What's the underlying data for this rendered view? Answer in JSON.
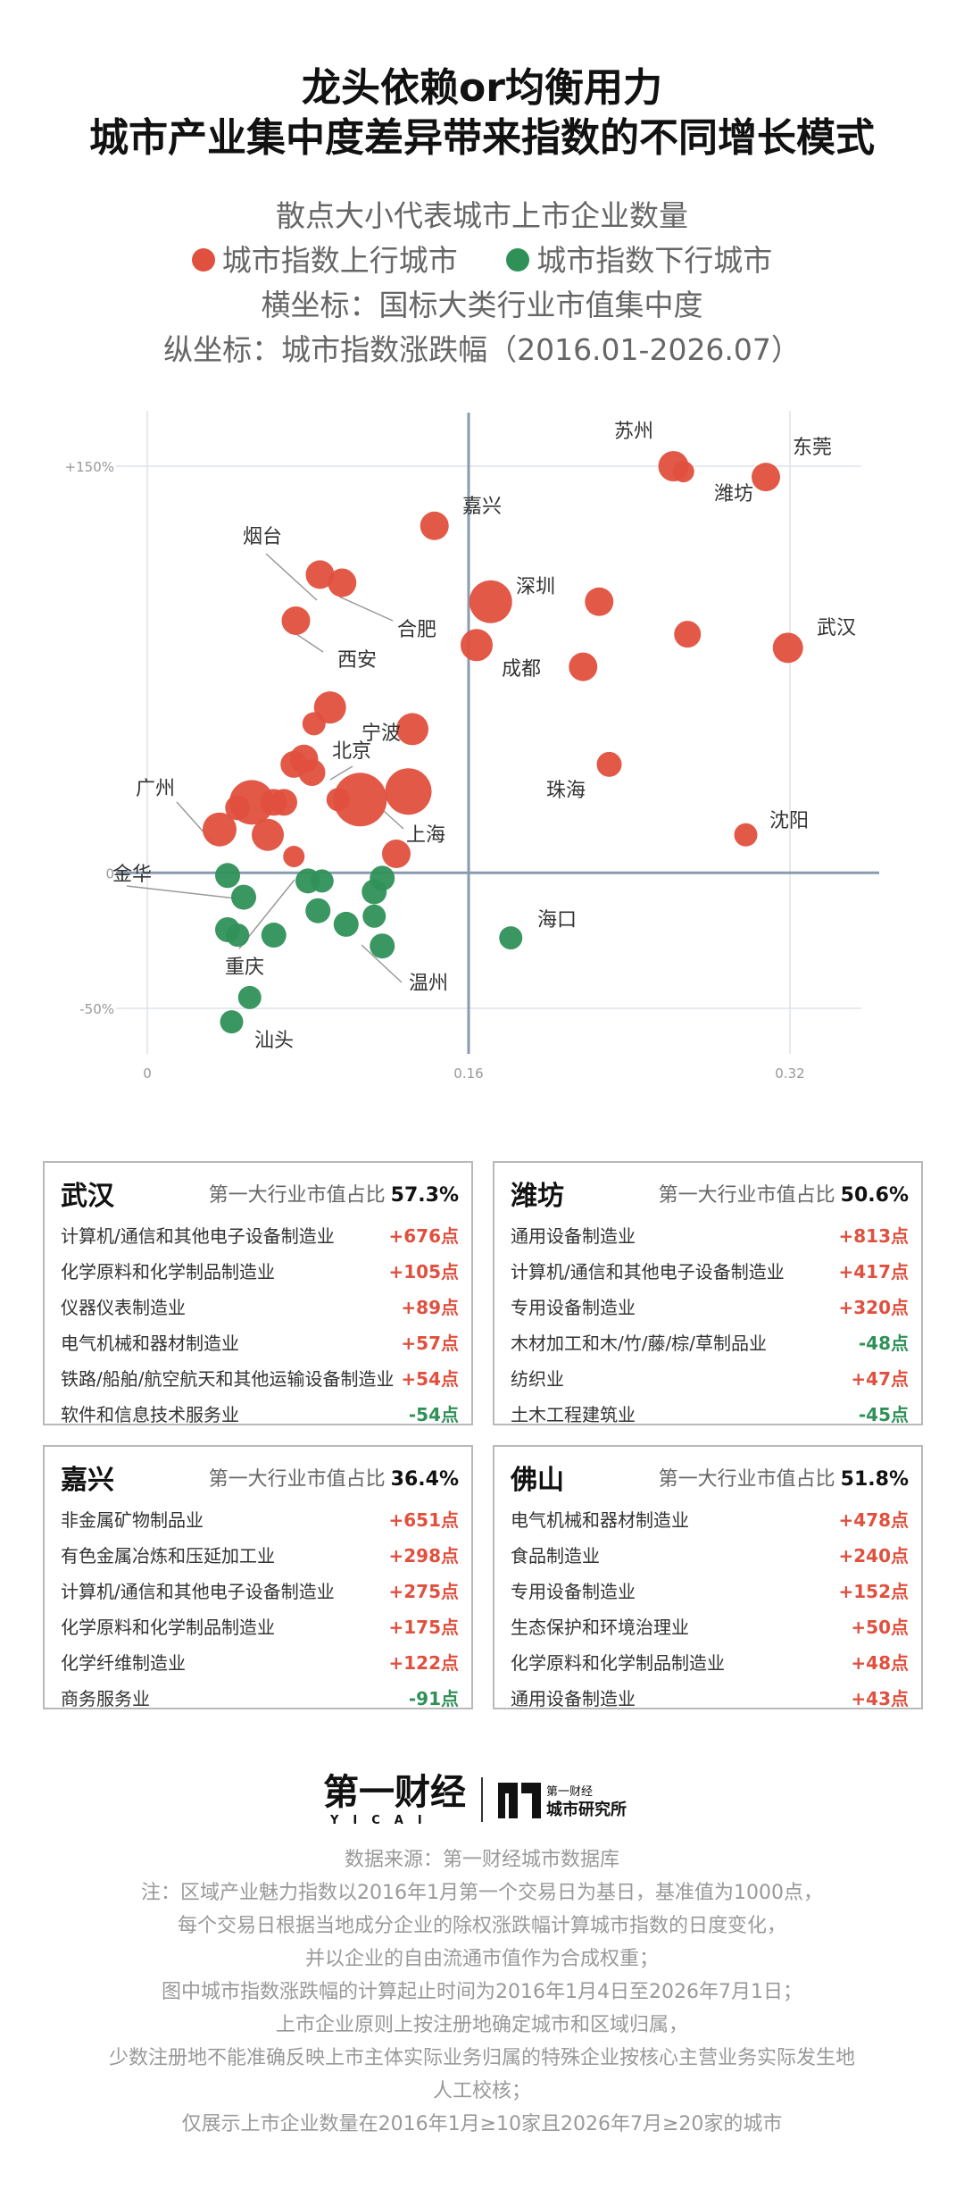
{
  "title_line1": "龙头依赖or均衡用力",
  "title_line2": "城市产业集中度差异带来指数的不同增长模式",
  "subtitle_size": "散点大小代表城市上市企业数量",
  "legend_up": "城市指数上行城市",
  "legend_down": "城市指数下行城市",
  "xaxis_desc": "横坐标：国标大类行业市值集中度",
  "yaxis_desc": "纵坐标：城市指数涨跌幅（2016.01-2026.07）",
  "colors": {
    "up": "#e0503e",
    "down": "#2f9158",
    "axis": "#8a9bb0",
    "grid": "#dde3ea"
  },
  "chart_data": {
    "type": "scatter",
    "xlim": [
      0,
      0.32
    ],
    "ylim": [
      -50,
      150
    ],
    "x_ticks": [
      "0",
      "0.16",
      "0.32"
    ],
    "y_ticks": [
      "+150%",
      "0",
      "-50%"
    ],
    "points": [
      {
        "x": 0.262,
        "y": 150,
        "r": 17,
        "up": true
      },
      {
        "x": 0.267,
        "y": 148,
        "r": 12,
        "up": true
      },
      {
        "x": 0.308,
        "y": 146,
        "r": 16,
        "up": true
      },
      {
        "x": 0.143,
        "y": 128,
        "r": 16,
        "up": true
      },
      {
        "x": 0.086,
        "y": 110,
        "r": 16,
        "up": true
      },
      {
        "x": 0.097,
        "y": 107,
        "r": 16,
        "up": true
      },
      {
        "x": 0.171,
        "y": 100,
        "r": 24,
        "up": true
      },
      {
        "x": 0.225,
        "y": 100,
        "r": 16,
        "up": true
      },
      {
        "x": 0.074,
        "y": 93,
        "r": 16,
        "up": true
      },
      {
        "x": 0.269,
        "y": 88,
        "r": 15,
        "up": true
      },
      {
        "x": 0.164,
        "y": 84,
        "r": 18,
        "up": true
      },
      {
        "x": 0.319,
        "y": 83,
        "r": 17,
        "up": true
      },
      {
        "x": 0.217,
        "y": 76,
        "r": 16,
        "up": true
      },
      {
        "x": 0.091,
        "y": 61,
        "r": 18,
        "up": true
      },
      {
        "x": 0.083,
        "y": 55,
        "r": 13,
        "up": true
      },
      {
        "x": 0.132,
        "y": 53,
        "r": 18,
        "up": true
      },
      {
        "x": 0.078,
        "y": 42,
        "r": 16,
        "up": true
      },
      {
        "x": 0.073,
        "y": 40,
        "r": 15,
        "up": true
      },
      {
        "x": 0.082,
        "y": 37,
        "r": 15,
        "up": true
      },
      {
        "x": 0.23,
        "y": 40,
        "r": 14,
        "up": true
      },
      {
        "x": 0.13,
        "y": 30,
        "r": 26,
        "up": true
      },
      {
        "x": 0.106,
        "y": 27,
        "r": 30,
        "up": true
      },
      {
        "x": 0.095,
        "y": 27,
        "r": 13,
        "up": true
      },
      {
        "x": 0.052,
        "y": 26,
        "r": 25,
        "up": true
      },
      {
        "x": 0.063,
        "y": 26,
        "r": 15,
        "up": true
      },
      {
        "x": 0.068,
        "y": 26,
        "r": 15,
        "up": true
      },
      {
        "x": 0.045,
        "y": 24,
        "r": 14,
        "up": true
      },
      {
        "x": 0.036,
        "y": 16,
        "r": 19,
        "up": true
      },
      {
        "x": 0.06,
        "y": 14,
        "r": 18,
        "up": true
      },
      {
        "x": 0.124,
        "y": 7,
        "r": 16,
        "up": true
      },
      {
        "x": 0.073,
        "y": 6,
        "r": 12,
        "up": true
      },
      {
        "x": 0.298,
        "y": 14,
        "r": 13,
        "up": true
      },
      {
        "x": 0.04,
        "y": -1,
        "r": 14,
        "down": true
      },
      {
        "x": 0.048,
        "y": -9,
        "r": 14,
        "down": true
      },
      {
        "x": 0.08,
        "y": -3,
        "r": 14,
        "down": true
      },
      {
        "x": 0.087,
        "y": -3,
        "r": 13,
        "down": true
      },
      {
        "x": 0.117,
        "y": -2,
        "r": 14,
        "down": true
      },
      {
        "x": 0.113,
        "y": -7,
        "r": 14,
        "down": true
      },
      {
        "x": 0.085,
        "y": -14,
        "r": 14,
        "down": true
      },
      {
        "x": 0.113,
        "y": -16,
        "r": 13,
        "down": true
      },
      {
        "x": 0.04,
        "y": -21,
        "r": 14,
        "down": true
      },
      {
        "x": 0.045,
        "y": -23,
        "r": 13,
        "down": true
      },
      {
        "x": 0.063,
        "y": -23,
        "r": 14,
        "down": true
      },
      {
        "x": 0.099,
        "y": -19,
        "r": 14,
        "down": true
      },
      {
        "x": 0.117,
        "y": -27,
        "r": 14,
        "down": true
      },
      {
        "x": 0.181,
        "y": -24,
        "r": 13,
        "down": true
      },
      {
        "x": 0.051,
        "y": -46,
        "r": 13,
        "down": true
      },
      {
        "x": 0.042,
        "y": -55,
        "r": 13,
        "down": true
      }
    ],
    "labels": [
      "苏州",
      "东莞",
      "潍坊",
      "嘉兴",
      "烟台",
      "深圳",
      "合肥",
      "武汉",
      "西安",
      "成都",
      "宁波",
      "北京",
      "珠海",
      "广州",
      "沈阳",
      "上海",
      "金华",
      "海口",
      "重庆",
      "温州",
      "汕头"
    ]
  },
  "cards": [
    {
      "city": "武汉",
      "share_label": "第一大行业市值占比",
      "share": "57.3%",
      "rows": [
        {
          "name": "计算机/通信和其他电子设备制造业",
          "value": "+676点",
          "up": true
        },
        {
          "name": "化学原料和化学制品制造业",
          "value": "+105点",
          "up": true
        },
        {
          "name": "仪器仪表制造业",
          "value": "+89点",
          "up": true
        },
        {
          "name": "电气机械和器材制造业",
          "value": "+57点",
          "up": true
        },
        {
          "name": "铁路/船舶/航空航天和其他运输设备制造业",
          "value": "+54点",
          "up": true
        },
        {
          "name": "软件和信息技术服务业",
          "value": "-54点",
          "up": false
        }
      ]
    },
    {
      "city": "潍坊",
      "share_label": "第一大行业市值占比",
      "share": "50.6%",
      "rows": [
        {
          "name": "通用设备制造业",
          "value": "+813点",
          "up": true
        },
        {
          "name": "计算机/通信和其他电子设备制造业",
          "value": "+417点",
          "up": true
        },
        {
          "name": "专用设备制造业",
          "value": "+320点",
          "up": true
        },
        {
          "name": "木材加工和木/竹/藤/棕/草制品业",
          "value": "-48点",
          "up": false
        },
        {
          "name": "纺织业",
          "value": "+47点",
          "up": true
        },
        {
          "name": "土木工程建筑业",
          "value": "-45点",
          "up": false
        }
      ]
    },
    {
      "city": "嘉兴",
      "share_label": "第一大行业市值占比",
      "share": "36.4%",
      "rows": [
        {
          "name": "非金属矿物制品业",
          "value": "+651点",
          "up": true
        },
        {
          "name": "有色金属冶炼和压延加工业",
          "value": "+298点",
          "up": true
        },
        {
          "name": "计算机/通信和其他电子设备制造业",
          "value": "+275点",
          "up": true
        },
        {
          "name": "化学原料和化学制品制造业",
          "value": "+175点",
          "up": true
        },
        {
          "name": "化学纤维制造业",
          "value": "+122点",
          "up": true
        },
        {
          "name": "商务服务业",
          "value": "-91点",
          "up": false
        }
      ]
    },
    {
      "city": "佛山",
      "share_label": "第一大行业市值占比",
      "share": "51.8%",
      "rows": [
        {
          "name": "电气机械和器材制造业",
          "value": "+478点",
          "up": true
        },
        {
          "name": "食品制造业",
          "value": "+240点",
          "up": true
        },
        {
          "name": "专用设备制造业",
          "value": "+152点",
          "up": true
        },
        {
          "name": "生态保护和环境治理业",
          "value": "+50点",
          "up": true
        },
        {
          "name": "化学原料和化学制品制造业",
          "value": "+48点",
          "up": true
        },
        {
          "name": "通用设备制造业",
          "value": "+43点",
          "up": true
        }
      ]
    }
  ],
  "logo": {
    "brand": "第一财经",
    "brand_sub": "YICAI",
    "inst_top": "第一财经",
    "inst_bottom": "城市研究所"
  },
  "notes": [
    "数据来源：第一财经城市数据库",
    "注：区域产业魅力指数以2016年1月第一个交易日为基日，基准值为1000点，",
    "每个交易日根据当地成分企业的除权涨跌幅计算城市指数的日度变化，",
    "并以企业的自由流通市值作为合成权重；",
    "图中城市指数涨跌幅的计算起止时间为2016年1月4日至2026年7月1日；",
    "上市企业原则上按注册地确定城市和区域归属，",
    "少数注册地不能准确反映上市主体实际业务归属的特殊企业按核心主营业务实际发生地",
    "人工校核；",
    "仅展示上市企业数量在2016年1月≥10家且2026年7月≥20家的城市"
  ]
}
